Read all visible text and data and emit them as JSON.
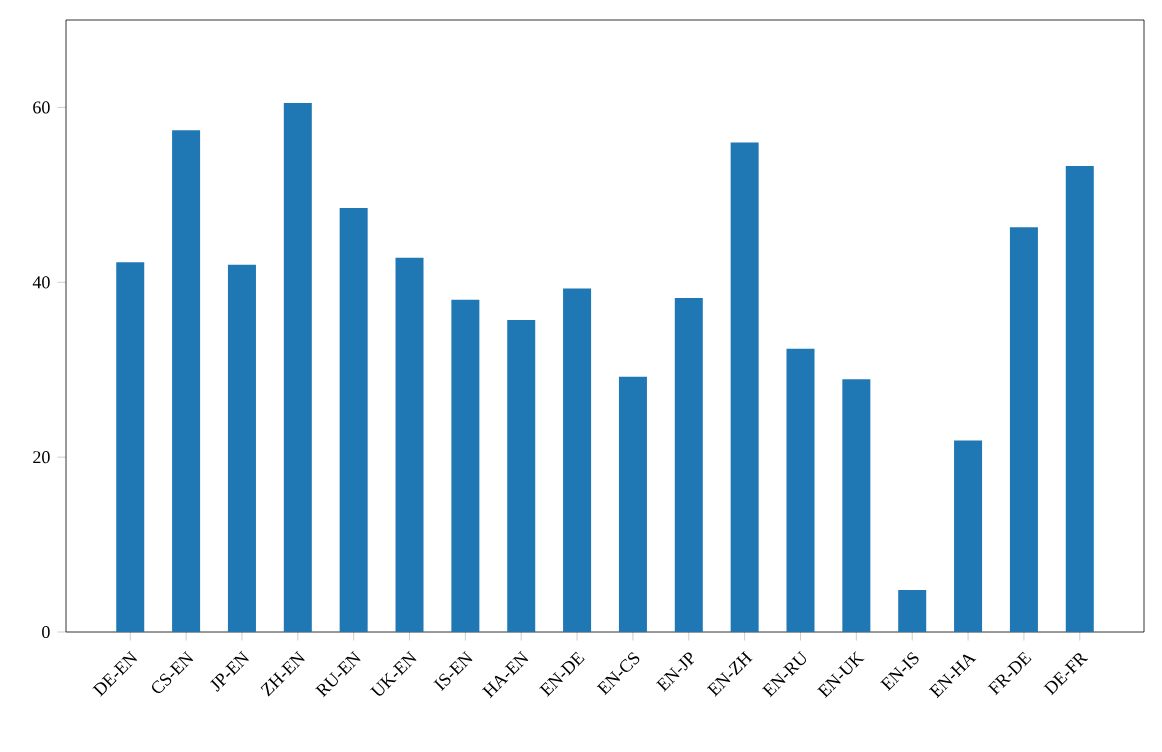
{
  "chart_data": {
    "type": "bar",
    "categories": [
      "DE-EN",
      "CS-EN",
      "JP-EN",
      "ZH-EN",
      "RU-EN",
      "UK-EN",
      "IS-EN",
      "HA-EN",
      "EN-DE",
      "EN-CS",
      "EN-JP",
      "EN-ZH",
      "EN-RU",
      "EN-UK",
      "EN-IS",
      "EN-HA",
      "FR-DE",
      "DE-FR"
    ],
    "values": [
      42.3,
      57.4,
      42.0,
      60.5,
      48.5,
      42.8,
      38.0,
      35.7,
      39.3,
      29.2,
      38.2,
      56.0,
      32.4,
      28.9,
      4.8,
      21.9,
      46.3,
      53.3
    ],
    "color": "#1f77b4",
    "ylim": [
      0,
      70
    ],
    "yticks": [
      0,
      20,
      40,
      60
    ],
    "grid": false
  }
}
